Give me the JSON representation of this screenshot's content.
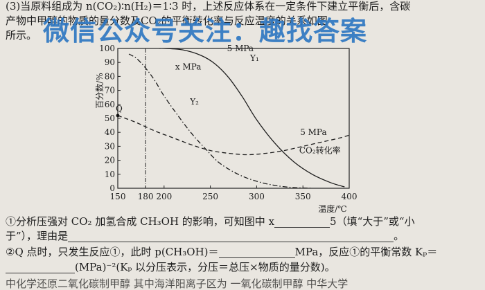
{
  "question": {
    "intro_line1": "(3)当原料组成为 n(CO₂)∶n(H₂)＝1∶3 时，上述反应体系在一定条件下建立平衡后，含碳",
    "intro_line2": "产物中甲醇的物质的量分数及CO₂的平衡转化率与反应温度的关系如图",
    "intro_line3": "所示。",
    "q1_line1": "①分析压强对 CO₂ 加氢合成 CH₃OH 的影响，可知图中 x",
    "q1_blank_after": "5（填“大于”或“小",
    "q1_line2": "于”），理由是",
    "q1_end": "。",
    "q2_line1": "②Q 点时，只发生反应①，此时 p(CH₃OH)＝",
    "q2_mid": "MPa，反应①的平衡常数 Kₚ＝",
    "q2_line2": "(MPa)⁻²(Kₚ 以分压表示，分压＝总压×物质的量分数)。",
    "cut_line": "中化学还原二氧化碳制甲醇 其中海洋阳离子区为 一氧化碳制甲醇 中华大学"
  },
  "watermark": "微信公众号关注：趣找答案",
  "chart_data": {
    "type": "line",
    "ylabel": "百分数/%",
    "xlabel": "温度/℃",
    "xlim": [
      150,
      400
    ],
    "ylim": [
      0,
      100
    ],
    "xticks": [
      150,
      180,
      200,
      250,
      300,
      350,
      400
    ],
    "yticks": [
      0,
      10,
      20,
      30,
      40,
      50,
      60,
      70,
      80,
      90,
      100
    ],
    "grid": false,
    "series": [
      {
        "name": "Y₁ 5 MPa",
        "style": "solid",
        "x": [
          195,
          200,
          220,
          240,
          255,
          270,
          285,
          300,
          320,
          340,
          360,
          380,
          395
        ],
        "y": [
          100,
          100,
          99,
          95,
          89,
          79,
          65,
          49,
          32,
          19,
          10,
          4,
          1
        ]
      },
      {
        "name": "Y₂ x MPa",
        "style": "dashdot",
        "x": [
          162,
          170,
          180,
          190,
          200,
          215,
          230,
          245,
          260,
          280,
          300,
          320,
          340,
          360
        ],
        "y": [
          96,
          93,
          86,
          77,
          66,
          52,
          39,
          28,
          18,
          10,
          5,
          2,
          0.5,
          0
        ]
      },
      {
        "name": "CO₂转化率 5 MPa",
        "style": "dashed",
        "x": [
          150,
          170,
          190,
          210,
          230,
          250,
          270,
          290,
          310,
          330,
          350,
          370,
          390,
          400
        ],
        "y": [
          52,
          47,
          41,
          36,
          31,
          27,
          25,
          24,
          25,
          27,
          30,
          33,
          36,
          38
        ]
      }
    ],
    "vertical_line_x": 180,
    "point_Q": {
      "label": "Q",
      "x": 150,
      "y": 52
    },
    "annotations": [
      {
        "text": "5 MPa",
        "x": 268,
        "y": 100
      },
      {
        "text": "Y₁",
        "x": 293,
        "y": 93
      },
      {
        "text": "x MPa",
        "x": 212,
        "y": 87
      },
      {
        "text": "Y₂",
        "x": 228,
        "y": 62
      },
      {
        "text": "5 MPa",
        "x": 347,
        "y": 40
      },
      {
        "text": "CO₂转化率",
        "x": 346,
        "y": 27
      }
    ]
  }
}
